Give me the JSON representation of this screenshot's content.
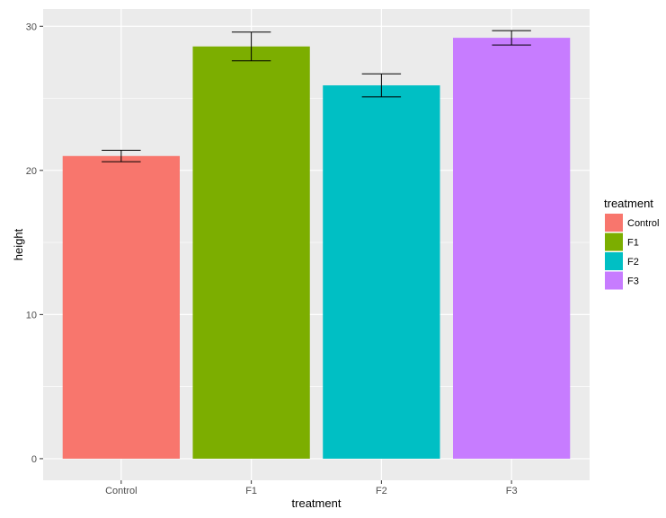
{
  "chart_data": {
    "type": "bar",
    "title": "",
    "xlabel": "treatment",
    "ylabel": "height",
    "categories": [
      "Control",
      "F1",
      "F2",
      "F3"
    ],
    "values": [
      21.0,
      28.6,
      25.9,
      29.2
    ],
    "error_low": [
      20.6,
      27.6,
      25.1,
      28.7
    ],
    "error_high": [
      21.4,
      29.6,
      26.7,
      29.7
    ],
    "colors": [
      "#F8766D",
      "#7CAE00",
      "#00BFC4",
      "#C77CFF"
    ],
    "ylim": [
      -1.5,
      31.2
    ],
    "yticks": [
      0,
      10,
      20,
      30
    ],
    "grid": true,
    "background": "#EBEBEB",
    "legend": {
      "title": "treatment",
      "placement": "right",
      "entries": [
        "Control",
        "F1",
        "F2",
        "F3"
      ]
    }
  }
}
